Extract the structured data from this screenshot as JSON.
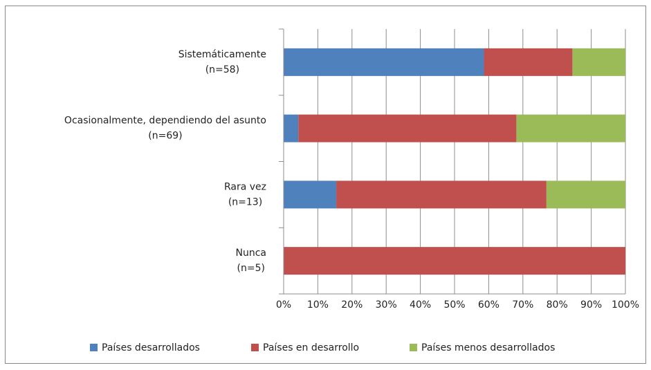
{
  "chart_data": {
    "type": "stacked_barh",
    "categories": [
      "Sistemáticamente\n(n=58)",
      "Ocasionalmente, dependiendo del asunto\n(n=69)",
      "Rara vez\n(n=13)",
      "Nunca\n(n=5)"
    ],
    "series": [
      {
        "name": "Países desarrollados",
        "color": "#4f81bd",
        "values": [
          58.6,
          4.3,
          15.4,
          0
        ]
      },
      {
        "name": "Países en desarrollo",
        "color": "#c0504d",
        "values": [
          25.9,
          63.8,
          61.5,
          100
        ]
      },
      {
        "name": "Países menos desarrollados",
        "color": "#9bbb59",
        "values": [
          15.5,
          31.9,
          23.1,
          0
        ]
      }
    ],
    "xlim": [
      0,
      100
    ],
    "xticks": [
      {
        "value": 0,
        "label": "0%"
      },
      {
        "value": 10,
        "label": "10%"
      },
      {
        "value": 20,
        "label": "20%"
      },
      {
        "value": 30,
        "label": "30%"
      },
      {
        "value": 40,
        "label": "40%"
      },
      {
        "value": 50,
        "label": "50%"
      },
      {
        "value": 60,
        "label": "60%"
      },
      {
        "value": 70,
        "label": "70%"
      },
      {
        "value": 80,
        "label": "80%"
      },
      {
        "value": 90,
        "label": "90%"
      },
      {
        "value": 100,
        "label": "100%"
      }
    ],
    "grid": true,
    "legend": "bottom"
  }
}
